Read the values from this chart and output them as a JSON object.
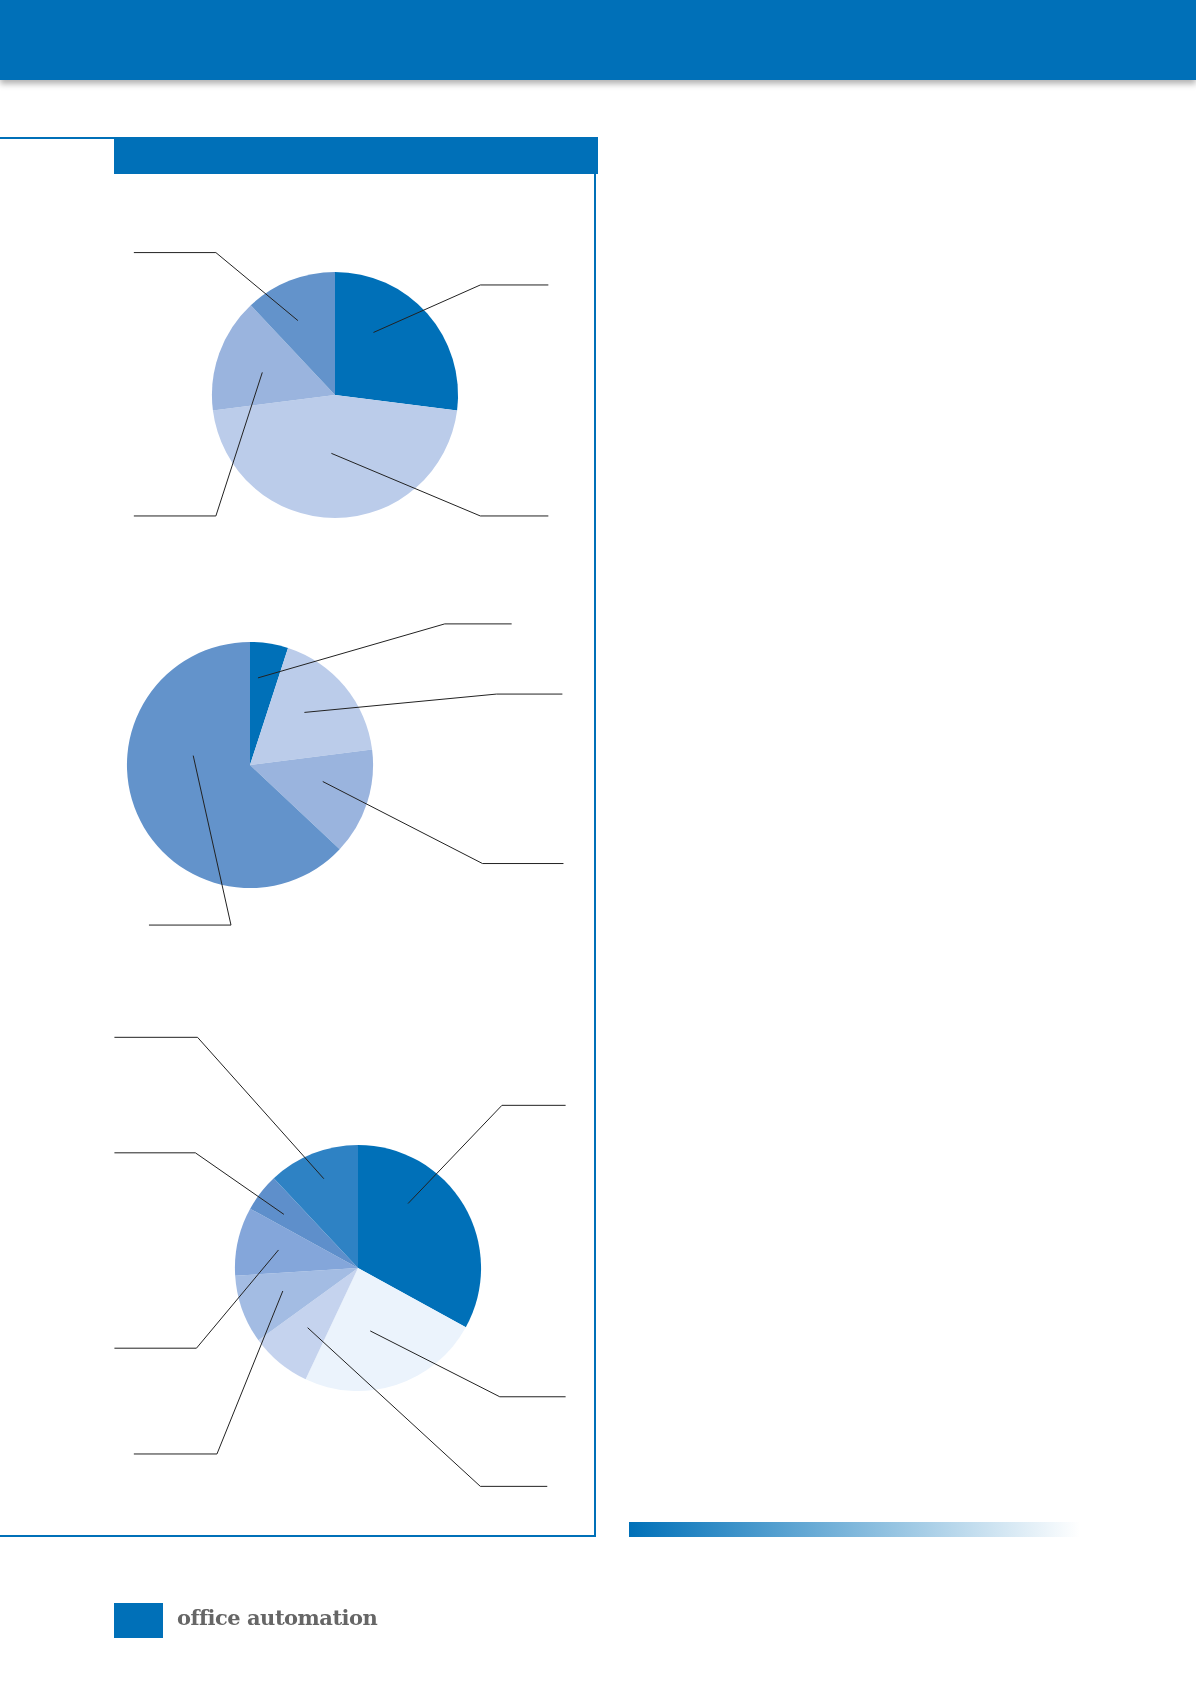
{
  "chart_data": [
    {
      "type": "pie",
      "categories": [
        null,
        null,
        null,
        null
      ],
      "values": [
        27,
        46,
        15,
        12
      ],
      "colors": [
        "#0070b8",
        "#bbccea",
        "#9ab4de",
        "#6393cb"
      ],
      "annotations": [
        "office automation"
      ]
    },
    {
      "type": "pie",
      "categories": [
        null,
        null,
        null,
        null
      ],
      "values": [
        5,
        18,
        14,
        63
      ],
      "colors": [
        "#0070b8",
        "#bbccea",
        "#9ab4de",
        "#6393cb"
      ]
    },
    {
      "type": "pie",
      "categories": [
        null,
        null,
        null,
        null,
        null,
        null,
        null
      ],
      "values": [
        33,
        24,
        8,
        9,
        9,
        5,
        12
      ],
      "colors": [
        "#0070b8",
        "#ebf3fc",
        "#c5d3ee",
        "#a3bce3",
        "#84a6da",
        "#5e8fcb",
        "#2e82c4"
      ]
    }
  ]
}
